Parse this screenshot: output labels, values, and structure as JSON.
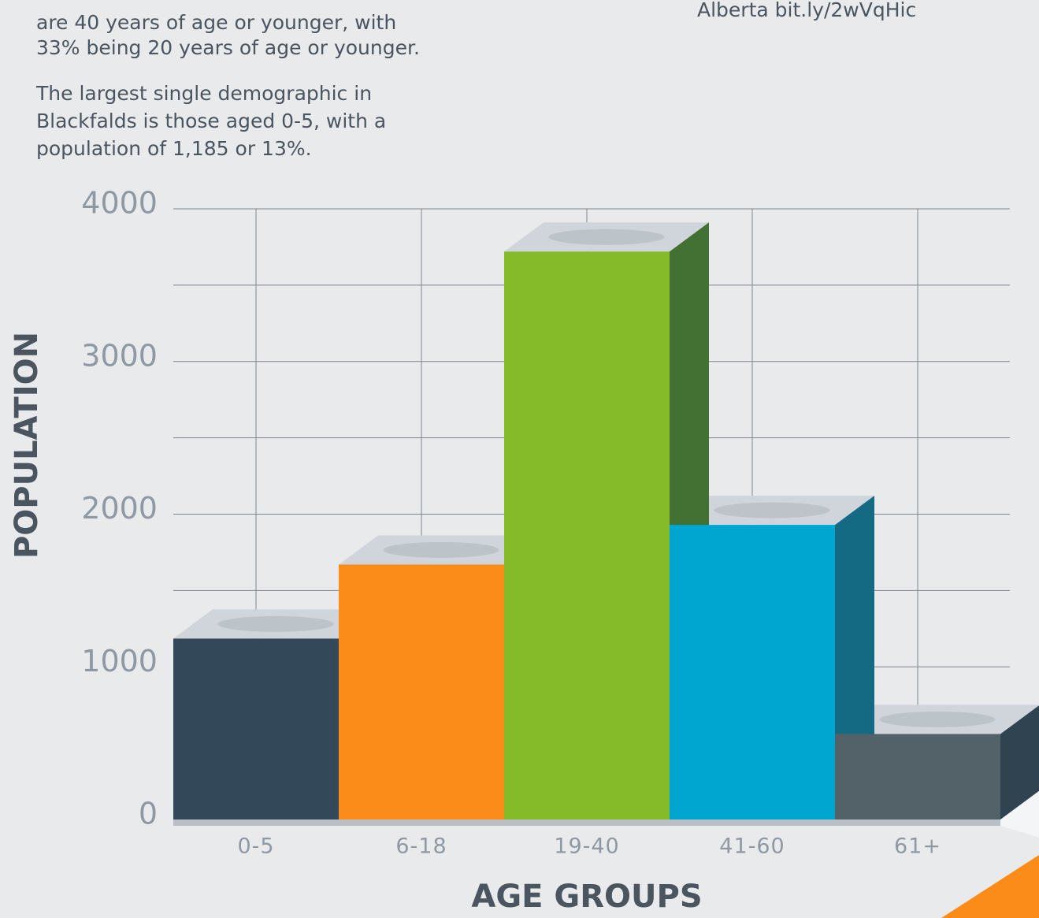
{
  "chart_data": {
    "type": "bar3d",
    "annotations": [
      "are 40 years of age or younger, with",
      "33% being 20 years of age or younger.",
      "The largest single demographic in",
      "Blackfalds is those aged 0-5, with a",
      "population of 1,185 or 13%."
    ],
    "source": "Alberta bit.ly/2wVqHic",
    "x_label": "AGE GROUPS",
    "y_label": "POPULATION",
    "categories": [
      "0-5",
      "6-18",
      "19-40",
      "41-60",
      "61+"
    ],
    "values": [
      1185,
      1670,
      3720,
      1930,
      560
    ],
    "colors": [
      "#33495a",
      "#fb8c1a",
      "#85ba28",
      "#00a6cf",
      "#536169"
    ],
    "side_colors": [
      "#24384a",
      "#c86a10",
      "#437133",
      "#146a82",
      "#2f4350"
    ],
    "ylim": [
      0,
      4000
    ],
    "yticks": [
      0,
      1000,
      2000,
      3000,
      4000
    ],
    "grid": true
  }
}
